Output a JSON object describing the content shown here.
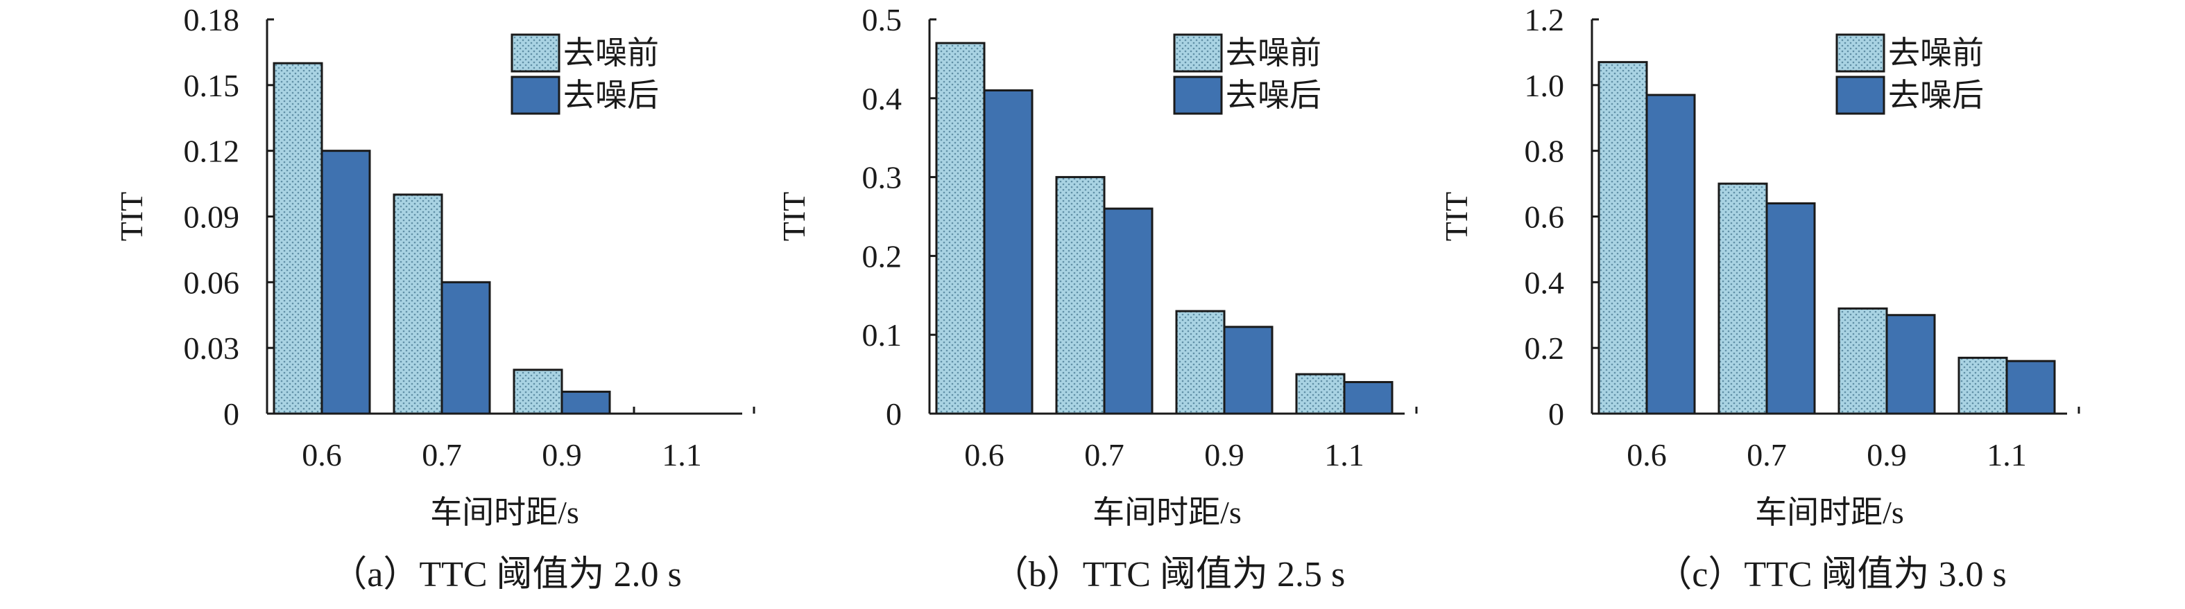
{
  "colors": {
    "before": "#a9d3e3",
    "after": "#3f72b0",
    "axis": "#1a1a1a"
  },
  "chart_data": [
    {
      "type": "bar",
      "caption": "（a）TTC 阈值为 2.0 s",
      "categories": [
        "0.6",
        "0.7",
        "0.9",
        "1.1"
      ],
      "series": [
        {
          "name": "去噪前",
          "values": [
            0.16,
            0.1,
            0.02,
            0
          ]
        },
        {
          "name": "去噪后",
          "values": [
            0.12,
            0.06,
            0.01,
            0
          ]
        }
      ],
      "xlabel": "车间时距/s",
      "ylabel": "TIT",
      "ylim": [
        0,
        0.18
      ],
      "yticks": [
        "0",
        "0.03",
        "0.06",
        "0.09",
        "0.12",
        "0.15",
        "0.18"
      ],
      "legend": "top-right",
      "grid": false
    },
    {
      "type": "bar",
      "caption": "（b）TTC 阈值为 2.5 s",
      "categories": [
        "0.6",
        "0.7",
        "0.9",
        "1.1"
      ],
      "series": [
        {
          "name": "去噪前",
          "values": [
            0.47,
            0.3,
            0.13,
            0.05
          ]
        },
        {
          "name": "去噪后",
          "values": [
            0.41,
            0.26,
            0.11,
            0.04
          ]
        }
      ],
      "xlabel": "车间时距/s",
      "ylabel": "TIT",
      "ylim": [
        0,
        0.5
      ],
      "yticks": [
        "0",
        "0.1",
        "0.2",
        "0.3",
        "0.4",
        "0.5"
      ],
      "legend": "top-right",
      "grid": false
    },
    {
      "type": "bar",
      "caption": "（c）TTC 阈值为 3.0 s",
      "categories": [
        "0.6",
        "0.7",
        "0.9",
        "1.1"
      ],
      "series": [
        {
          "name": "去噪前",
          "values": [
            1.07,
            0.7,
            0.32,
            0.17
          ]
        },
        {
          "name": "去噪后",
          "values": [
            0.97,
            0.64,
            0.3,
            0.16
          ]
        }
      ],
      "xlabel": "车间时距/s",
      "ylabel": "TIT",
      "ylim": [
        0,
        1.2
      ],
      "yticks": [
        "0",
        "0.2",
        "0.4",
        "0.6",
        "0.8",
        "1.0",
        "1.2"
      ],
      "legend": "top-right",
      "grid": false
    }
  ]
}
